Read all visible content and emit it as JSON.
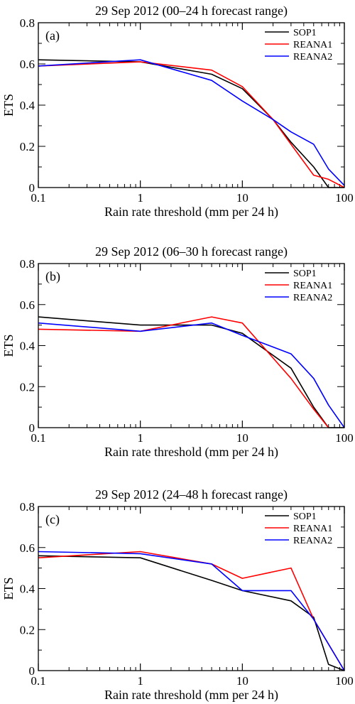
{
  "chart_data": [
    {
      "type": "line",
      "title": "29 Sep 2012 (00–24 h forecast range)",
      "panel_label": "(a)",
      "xlabel": "Rain rate threshold (mm per 24 h)",
      "ylabel": "ETS",
      "xscale": "log",
      "xlim": [
        0.1,
        100
      ],
      "ylim": [
        0,
        0.8
      ],
      "xticks": [
        "0.1",
        "1",
        "10",
        "100"
      ],
      "yticks": [
        "0",
        "0.2",
        "0.4",
        "0.6",
        "0.8"
      ],
      "legend": "top-right",
      "grid": false,
      "series": [
        {
          "name": "SOP1",
          "color": "#000000",
          "x": [
            0.1,
            1,
            5,
            10,
            20,
            30,
            50,
            70,
            100
          ],
          "y": [
            0.62,
            0.61,
            0.55,
            0.48,
            0.33,
            0.22,
            0.1,
            0.0,
            0.0
          ]
        },
        {
          "name": "REANA1",
          "color": "#ff0000",
          "x": [
            0.1,
            1,
            5,
            10,
            20,
            30,
            50,
            70,
            100
          ],
          "y": [
            0.59,
            0.61,
            0.57,
            0.49,
            0.33,
            0.21,
            0.06,
            0.04,
            0.0
          ]
        },
        {
          "name": "REANA2",
          "color": "#0000ff",
          "x": [
            0.1,
            1,
            5,
            10,
            20,
            30,
            50,
            70,
            100
          ],
          "y": [
            0.59,
            0.62,
            0.52,
            0.42,
            0.33,
            0.27,
            0.21,
            0.09,
            0.01
          ]
        }
      ]
    },
    {
      "type": "line",
      "title": "29 Sep 2012 (06–30 h forecast range)",
      "panel_label": "(b)",
      "xlabel": "Rain rate threshold (mm per 24 h)",
      "ylabel": "ETS",
      "xscale": "log",
      "xlim": [
        0.1,
        100
      ],
      "ylim": [
        0,
        0.8
      ],
      "xticks": [
        "0.1",
        "1",
        "10",
        "100"
      ],
      "yticks": [
        "0",
        "0.2",
        "0.4",
        "0.6",
        "0.8"
      ],
      "legend": "top-right",
      "grid": false,
      "series": [
        {
          "name": "SOP1",
          "color": "#000000",
          "x": [
            0.1,
            1,
            5,
            10,
            30,
            50,
            70,
            100
          ],
          "y": [
            0.54,
            0.5,
            0.5,
            0.46,
            0.29,
            0.1,
            0.0,
            0.0
          ]
        },
        {
          "name": "REANA1",
          "color": "#ff0000",
          "x": [
            0.1,
            1,
            5,
            10,
            30,
            50,
            70
          ],
          "y": [
            0.48,
            0.47,
            0.54,
            0.51,
            0.24,
            0.09,
            0.0
          ]
        },
        {
          "name": "REANA2",
          "color": "#0000ff",
          "x": [
            0.1,
            1,
            5,
            10,
            30,
            50,
            70,
            100
          ],
          "y": [
            0.51,
            0.47,
            0.51,
            0.45,
            0.36,
            0.24,
            0.11,
            0.0
          ]
        }
      ]
    },
    {
      "type": "line",
      "title": "29 Sep 2012 (24–48 h forecast range)",
      "panel_label": "(c)",
      "xlabel": "Rain rate threshold (mm per 24 h)",
      "ylabel": "ETS",
      "xscale": "log",
      "xlim": [
        0.1,
        100
      ],
      "ylim": [
        0,
        0.8
      ],
      "xticks": [
        "0.1",
        "1",
        "10",
        "100"
      ],
      "yticks": [
        "0",
        "0.2",
        "0.4",
        "0.6",
        "0.8"
      ],
      "legend": "top-right",
      "grid": false,
      "series": [
        {
          "name": "SOP1",
          "color": "#000000",
          "x": [
            0.1,
            1,
            5,
            10,
            30,
            50,
            70,
            100
          ],
          "y": [
            0.56,
            0.55,
            0.44,
            0.39,
            0.34,
            0.26,
            0.03,
            0.0
          ]
        },
        {
          "name": "REANA1",
          "color": "#ff0000",
          "x": [
            0.1,
            1,
            5,
            10,
            30,
            50,
            100
          ],
          "y": [
            0.55,
            0.58,
            0.52,
            0.45,
            0.5,
            0.25,
            0.0
          ]
        },
        {
          "name": "REANA2",
          "color": "#0000ff",
          "x": [
            0.1,
            1,
            5,
            10,
            30,
            50,
            100
          ],
          "y": [
            0.58,
            0.57,
            0.52,
            0.39,
            0.39,
            0.25,
            0.0
          ]
        }
      ]
    }
  ]
}
